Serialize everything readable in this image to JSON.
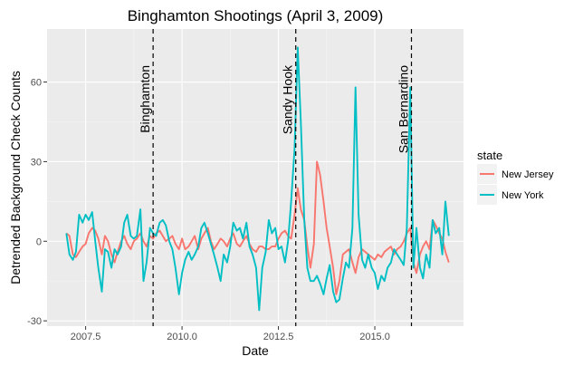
{
  "chart_data": {
    "type": "line",
    "title": "Binghamton Shootings (April 3, 2009)",
    "xlabel": "Date",
    "ylabel": "Detrended Background Check Counts",
    "xlim": [
      2006.5,
      2017.3
    ],
    "ylim": [
      -32,
      80
    ],
    "x_ticks": [
      2007.5,
      2010.0,
      2012.5,
      2015.0
    ],
    "x_tick_labels": [
      "2007.5",
      "2010.0",
      "2012.5",
      "2015.0"
    ],
    "y_ticks": [
      -30,
      0,
      30,
      60
    ],
    "y_tick_labels": [
      "-30",
      "0",
      "30",
      "60"
    ],
    "grid": true,
    "legend": {
      "title": "state",
      "position": "right"
    },
    "events": [
      {
        "label": "Binghamton",
        "x": 2009.25
      },
      {
        "label": "Sandy Hook",
        "x": 2012.95
      },
      {
        "label": "San Bernardino",
        "x": 2015.95
      }
    ],
    "series": [
      {
        "name": "New Jersey",
        "color": "#F8766D",
        "points": [
          [
            2007.0,
            3
          ],
          [
            2007.08,
            2
          ],
          [
            2007.17,
            -5
          ],
          [
            2007.25,
            -6
          ],
          [
            2007.33,
            -4
          ],
          [
            2007.42,
            -2
          ],
          [
            2007.5,
            -1
          ],
          [
            2007.58,
            3
          ],
          [
            2007.67,
            5
          ],
          [
            2007.75,
            4
          ],
          [
            2007.83,
            1
          ],
          [
            2007.92,
            -5
          ],
          [
            2008.0,
            2
          ],
          [
            2008.08,
            0
          ],
          [
            2008.17,
            -5
          ],
          [
            2008.25,
            -8
          ],
          [
            2008.33,
            -4
          ],
          [
            2008.42,
            0
          ],
          [
            2008.5,
            2
          ],
          [
            2008.58,
            -1
          ],
          [
            2008.67,
            -3
          ],
          [
            2008.75,
            0
          ],
          [
            2008.83,
            1
          ],
          [
            2008.92,
            3
          ],
          [
            2009.0,
            0
          ],
          [
            2009.08,
            -2
          ],
          [
            2009.17,
            2
          ],
          [
            2009.25,
            1
          ],
          [
            2009.33,
            3
          ],
          [
            2009.42,
            4
          ],
          [
            2009.5,
            2
          ],
          [
            2009.58,
            0
          ],
          [
            2009.67,
            1
          ],
          [
            2009.75,
            2
          ],
          [
            2009.83,
            -1
          ],
          [
            2009.92,
            -3
          ],
          [
            2010.0,
            1
          ],
          [
            2010.08,
            -3
          ],
          [
            2010.17,
            -2
          ],
          [
            2010.25,
            0
          ],
          [
            2010.33,
            2
          ],
          [
            2010.42,
            -3
          ],
          [
            2010.5,
            1
          ],
          [
            2010.58,
            3
          ],
          [
            2010.67,
            5
          ],
          [
            2010.75,
            0
          ],
          [
            2010.83,
            -3
          ],
          [
            2010.92,
            -1
          ],
          [
            2011.0,
            1
          ],
          [
            2011.08,
            0
          ],
          [
            2011.17,
            -2
          ],
          [
            2011.25,
            1
          ],
          [
            2011.33,
            3
          ],
          [
            2011.42,
            -1
          ],
          [
            2011.5,
            -2
          ],
          [
            2011.58,
            0
          ],
          [
            2011.67,
            2
          ],
          [
            2011.75,
            -1
          ],
          [
            2011.83,
            -3
          ],
          [
            2011.92,
            -4
          ],
          [
            2012.0,
            -2
          ],
          [
            2012.08,
            -2
          ],
          [
            2012.17,
            -3
          ],
          [
            2012.25,
            -3
          ],
          [
            2012.33,
            -2
          ],
          [
            2012.42,
            -2
          ],
          [
            2012.5,
            1
          ],
          [
            2012.58,
            3
          ],
          [
            2012.67,
            4
          ],
          [
            2012.75,
            2
          ],
          [
            2012.83,
            1
          ],
          [
            2012.92,
            10
          ],
          [
            2013.0,
            20
          ],
          [
            2013.08,
            12
          ],
          [
            2013.17,
            8
          ],
          [
            2013.25,
            -2
          ],
          [
            2013.33,
            -10
          ],
          [
            2013.42,
            -1
          ],
          [
            2013.5,
            30
          ],
          [
            2013.58,
            25
          ],
          [
            2013.67,
            15
          ],
          [
            2013.75,
            5
          ],
          [
            2013.83,
            -2
          ],
          [
            2013.92,
            -10
          ],
          [
            2014.0,
            -20
          ],
          [
            2014.08,
            -15
          ],
          [
            2014.17,
            -5
          ],
          [
            2014.25,
            -4
          ],
          [
            2014.33,
            -3
          ],
          [
            2014.42,
            -8
          ],
          [
            2014.5,
            -12
          ],
          [
            2014.58,
            -6
          ],
          [
            2014.67,
            -3
          ],
          [
            2014.75,
            -4
          ],
          [
            2014.83,
            -5
          ],
          [
            2014.92,
            -6
          ],
          [
            2015.0,
            -7
          ],
          [
            2015.08,
            -5
          ],
          [
            2015.17,
            -6
          ],
          [
            2015.25,
            -4
          ],
          [
            2015.33,
            -3
          ],
          [
            2015.42,
            -2
          ],
          [
            2015.5,
            -5
          ],
          [
            2015.58,
            -3
          ],
          [
            2015.67,
            -2
          ],
          [
            2015.75,
            0
          ],
          [
            2015.83,
            3
          ],
          [
            2015.92,
            5
          ],
          [
            2016.0,
            -8
          ],
          [
            2016.08,
            -12
          ],
          [
            2016.17,
            -5
          ],
          [
            2016.25,
            -2
          ],
          [
            2016.33,
            0
          ],
          [
            2016.42,
            -3
          ],
          [
            2016.5,
            8
          ],
          [
            2016.58,
            6
          ],
          [
            2016.67,
            3
          ],
          [
            2016.75,
            1
          ],
          [
            2016.83,
            -4
          ],
          [
            2016.92,
            -8
          ]
        ]
      },
      {
        "name": "New York",
        "color": "#00BFC4",
        "points": [
          [
            2007.0,
            3
          ],
          [
            2007.08,
            -5
          ],
          [
            2007.17,
            -7
          ],
          [
            2007.25,
            -4
          ],
          [
            2007.33,
            10
          ],
          [
            2007.42,
            7
          ],
          [
            2007.5,
            10
          ],
          [
            2007.58,
            8
          ],
          [
            2007.67,
            11
          ],
          [
            2007.75,
            0
          ],
          [
            2007.83,
            -10
          ],
          [
            2007.92,
            -19
          ],
          [
            2008.0,
            -3
          ],
          [
            2008.08,
            -4
          ],
          [
            2008.17,
            -10
          ],
          [
            2008.25,
            -3
          ],
          [
            2008.33,
            -5
          ],
          [
            2008.42,
            -2
          ],
          [
            2008.5,
            7
          ],
          [
            2008.58,
            10
          ],
          [
            2008.67,
            2
          ],
          [
            2008.75,
            1
          ],
          [
            2008.83,
            2
          ],
          [
            2008.92,
            12
          ],
          [
            2009.0,
            -15
          ],
          [
            2009.08,
            -8
          ],
          [
            2009.17,
            5
          ],
          [
            2009.25,
            3
          ],
          [
            2009.33,
            2
          ],
          [
            2009.42,
            7
          ],
          [
            2009.5,
            8
          ],
          [
            2009.58,
            6
          ],
          [
            2009.67,
            0
          ],
          [
            2009.75,
            -3
          ],
          [
            2009.83,
            -10
          ],
          [
            2009.92,
            -20
          ],
          [
            2010.0,
            -12
          ],
          [
            2010.08,
            -7
          ],
          [
            2010.17,
            -4
          ],
          [
            2010.25,
            -7
          ],
          [
            2010.33,
            -5
          ],
          [
            2010.42,
            -2
          ],
          [
            2010.5,
            5
          ],
          [
            2010.58,
            7
          ],
          [
            2010.67,
            3
          ],
          [
            2010.75,
            -1
          ],
          [
            2010.83,
            -5
          ],
          [
            2010.92,
            -10
          ],
          [
            2011.0,
            -15
          ],
          [
            2011.08,
            -5
          ],
          [
            2011.17,
            -8
          ],
          [
            2011.25,
            -2
          ],
          [
            2011.33,
            7
          ],
          [
            2011.42,
            4
          ],
          [
            2011.5,
            5
          ],
          [
            2011.58,
            1
          ],
          [
            2011.67,
            7
          ],
          [
            2011.75,
            -2
          ],
          [
            2011.83,
            -5
          ],
          [
            2011.92,
            -10
          ],
          [
            2012.0,
            -26
          ],
          [
            2012.08,
            -10
          ],
          [
            2012.17,
            -4
          ],
          [
            2012.25,
            8
          ],
          [
            2012.33,
            3
          ],
          [
            2012.42,
            5
          ],
          [
            2012.5,
            -3
          ],
          [
            2012.58,
            -2
          ],
          [
            2012.67,
            -8
          ],
          [
            2012.75,
            0
          ],
          [
            2012.83,
            15
          ],
          [
            2012.92,
            35
          ],
          [
            2013.0,
            73
          ],
          [
            2013.08,
            45
          ],
          [
            2013.17,
            8
          ],
          [
            2013.25,
            -10
          ],
          [
            2013.33,
            -15
          ],
          [
            2013.42,
            -15
          ],
          [
            2013.5,
            -13
          ],
          [
            2013.58,
            -16
          ],
          [
            2013.67,
            -20
          ],
          [
            2013.75,
            -14
          ],
          [
            2013.83,
            -9
          ],
          [
            2013.92,
            -19
          ],
          [
            2014.0,
            -23
          ],
          [
            2014.08,
            -22
          ],
          [
            2014.17,
            -14
          ],
          [
            2014.25,
            -8
          ],
          [
            2014.33,
            -10
          ],
          [
            2014.42,
            5
          ],
          [
            2014.5,
            58
          ],
          [
            2014.58,
            10
          ],
          [
            2014.67,
            -7
          ],
          [
            2014.75,
            -10
          ],
          [
            2014.83,
            -5
          ],
          [
            2014.92,
            -10
          ],
          [
            2015.0,
            -12
          ],
          [
            2015.08,
            -18
          ],
          [
            2015.17,
            -13
          ],
          [
            2015.25,
            -15
          ],
          [
            2015.33,
            -10
          ],
          [
            2015.42,
            -8
          ],
          [
            2015.5,
            -3
          ],
          [
            2015.58,
            -5
          ],
          [
            2015.67,
            -7
          ],
          [
            2015.75,
            -9
          ],
          [
            2015.83,
            5
          ],
          [
            2015.92,
            58
          ],
          [
            2016.0,
            -10
          ],
          [
            2016.08,
            5
          ],
          [
            2016.17,
            -10
          ],
          [
            2016.25,
            -14
          ],
          [
            2016.33,
            -5
          ],
          [
            2016.42,
            -10
          ],
          [
            2016.5,
            8
          ],
          [
            2016.58,
            3
          ],
          [
            2016.67,
            5
          ],
          [
            2016.75,
            -5
          ],
          [
            2016.83,
            15
          ],
          [
            2016.92,
            2
          ]
        ]
      }
    ]
  }
}
